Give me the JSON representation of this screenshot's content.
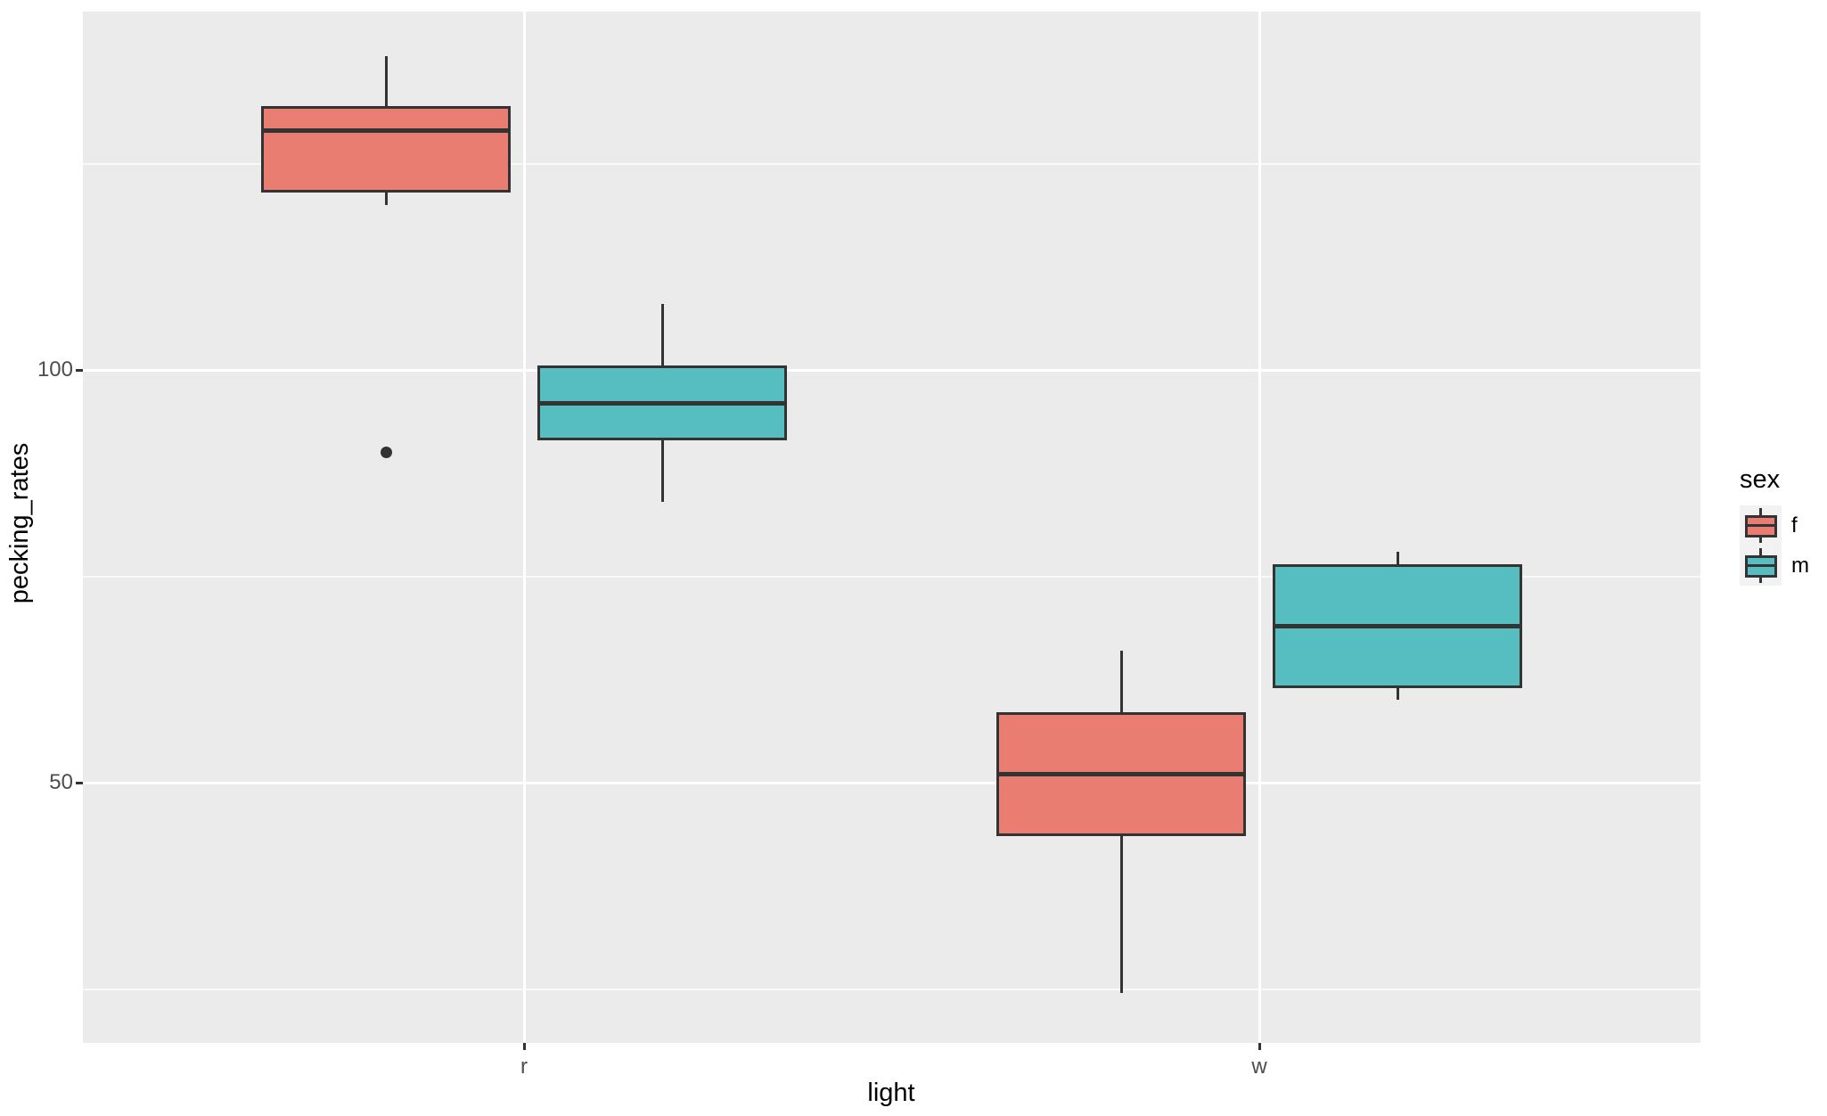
{
  "figure": {
    "background": "#FFFFFF",
    "panel_background": "#EBEBEB",
    "grid_color": "#FFFFFF",
    "stroke_color": "#333333",
    "tick_label_color": "#4D4D4D"
  },
  "chart_data": {
    "type": "boxplot",
    "title": "",
    "xlabel": "light",
    "ylabel": "pecking_rates",
    "categories": [
      "r",
      "w"
    ],
    "y_axis": {
      "major_ticks": [
        100,
        50
      ],
      "minor_ticks": [
        125,
        75,
        25
      ],
      "ylim": [
        17,
        142
      ],
      "grid": "on"
    },
    "legend": {
      "title": "sex",
      "position": "right",
      "entries": [
        {
          "label": "f",
          "color": "#E97D71"
        },
        {
          "label": "m",
          "color": "#56BDC0"
        }
      ]
    },
    "series": [
      {
        "light": "r",
        "sex": "f",
        "whisker_low": 120,
        "q1": 121.5,
        "median": 129,
        "q3": 132,
        "whisker_high": 138,
        "outliers": [
          90
        ]
      },
      {
        "light": "r",
        "sex": "m",
        "whisker_low": 84,
        "q1": 91.5,
        "median": 96,
        "q3": 100.5,
        "whisker_high": 108,
        "outliers": []
      },
      {
        "light": "w",
        "sex": "f",
        "whisker_low": 24.5,
        "q1": 43.5,
        "median": 51,
        "q3": 58.5,
        "whisker_high": 66,
        "outliers": []
      },
      {
        "light": "w",
        "sex": "m",
        "whisker_low": 60,
        "q1": 61.5,
        "median": 69,
        "q3": 76.5,
        "whisker_high": 78,
        "outliers": []
      }
    ]
  }
}
